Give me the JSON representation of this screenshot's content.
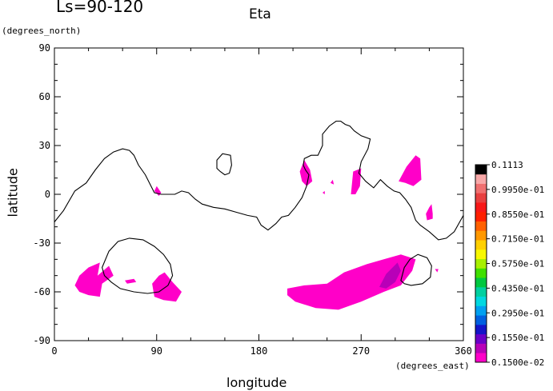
{
  "header": {
    "season": "Ls=90-120",
    "title": "Eta"
  },
  "chart_data": {
    "type": "heatmap",
    "title": "Eta",
    "subtitle": "Ls=90-120",
    "xlabel": "longitude",
    "ylabel": "latitude",
    "x_units": "(degrees_east)",
    "y_units": "(degrees_north)",
    "xlim": [
      0,
      360
    ],
    "ylim": [
      -90,
      90
    ],
    "xticks": [
      "0",
      "90",
      "180",
      "270",
      "360"
    ],
    "yticks": [
      "90",
      "60",
      "30",
      "0",
      "-30",
      "-60",
      "-90"
    ],
    "grid": false,
    "colorbar": {
      "levels": [
        "0.1113",
        "0.9950e-01",
        "0.8550e-01",
        "0.7150e-01",
        "0.5750e-01",
        "0.4350e-01",
        "0.2950e-01",
        "0.1550e-01",
        "0.1500e-02"
      ],
      "colors": [
        "#ff00c8",
        "#b800b8",
        "#6a00c8",
        "#1414c8",
        "#0060e0",
        "#00a0f0",
        "#00d8e0",
        "#00d0a0",
        "#00c840",
        "#40e000",
        "#a8f000",
        "#f8f800",
        "#ffd000",
        "#ff9800",
        "#ff6000",
        "#ff2000",
        "#f81818",
        "#e84040",
        "#f07070",
        "#f8a8a8",
        "#000000"
      ]
    },
    "filled_regions": [
      {
        "level": "0.1500e-02",
        "color": "#ff00c8",
        "points": [
          [
            18,
            -56
          ],
          [
            22,
            -50
          ],
          [
            30,
            -45
          ],
          [
            40,
            -42
          ],
          [
            38,
            -50
          ],
          [
            48,
            -44
          ],
          [
            52,
            -50
          ],
          [
            42,
            -55
          ],
          [
            40,
            -63
          ],
          [
            30,
            -62
          ],
          [
            22,
            -60
          ]
        ]
      },
      {
        "level": "0.1500e-02",
        "color": "#ff00c8",
        "points": [
          [
            86,
            -55
          ],
          [
            92,
            -50
          ],
          [
            97,
            -48
          ],
          [
            104,
            -54
          ],
          [
            112,
            -60
          ],
          [
            107,
            -66
          ],
          [
            96,
            -65
          ],
          [
            88,
            -63
          ]
        ]
      },
      {
        "level": "0.1500e-02",
        "color": "#ff00c8",
        "points": [
          [
            62,
            -53
          ],
          [
            70,
            -52
          ],
          [
            72,
            -54
          ],
          [
            64,
            -55
          ]
        ]
      },
      {
        "level": "0.1500e-02",
        "color": "#ff00c8",
        "points": [
          [
            88,
            2
          ],
          [
            90,
            5
          ],
          [
            94,
            1
          ],
          [
            92,
            -1
          ]
        ]
      },
      {
        "level": "0.1500e-02",
        "color": "#ff00c8",
        "points": [
          [
            216,
            14
          ],
          [
            220,
            21
          ],
          [
            225,
            15
          ],
          [
            227,
            8
          ],
          [
            222,
            5
          ],
          [
            218,
            8
          ]
        ]
      },
      {
        "level": "0.1500e-02",
        "color": "#ff00c8",
        "points": [
          [
            243,
            7
          ],
          [
            245,
            9
          ],
          [
            246,
            6
          ]
        ]
      },
      {
        "level": "0.1500e-02",
        "color": "#ff00c8",
        "points": [
          [
            236,
            1
          ],
          [
            238,
            2
          ],
          [
            238,
            0
          ]
        ]
      },
      {
        "level": "0.1500e-02",
        "color": "#ff00c8",
        "points": [
          [
            261,
            0
          ],
          [
            263,
            14
          ],
          [
            270,
            16
          ],
          [
            269,
            5
          ],
          [
            265,
            0
          ]
        ]
      },
      {
        "level": "0.1500e-02",
        "color": "#ff00c8",
        "points": [
          [
            303,
            8
          ],
          [
            310,
            17
          ],
          [
            318,
            24
          ],
          [
            322,
            22
          ],
          [
            323,
            9
          ],
          [
            316,
            5
          ],
          [
            309,
            7
          ]
        ]
      },
      {
        "level": "0.1500e-02",
        "color": "#ff00c8",
        "points": [
          [
            327,
            -12
          ],
          [
            330,
            -8
          ],
          [
            332,
            -6
          ],
          [
            333,
            -12
          ],
          [
            333,
            -15
          ],
          [
            328,
            -16
          ]
        ]
      },
      {
        "level": "0.1500e-02",
        "color": "#ff00c8",
        "points": [
          [
            335,
            -46
          ],
          [
            338,
            -46
          ],
          [
            337,
            -48
          ]
        ]
      },
      {
        "level": "0.1500e-02",
        "color": "#ff00c8",
        "points": [
          [
            205,
            -58
          ],
          [
            220,
            -56
          ],
          [
            240,
            -55
          ],
          [
            255,
            -48
          ],
          [
            275,
            -43
          ],
          [
            290,
            -40
          ],
          [
            305,
            -37
          ],
          [
            318,
            -40
          ],
          [
            315,
            -47
          ],
          [
            305,
            -56
          ],
          [
            290,
            -60
          ],
          [
            270,
            -66
          ],
          [
            250,
            -71
          ],
          [
            230,
            -70
          ],
          [
            212,
            -66
          ],
          [
            205,
            -62
          ]
        ]
      },
      {
        "level": "0.1550e-01",
        "color": "#b800b8",
        "points": [
          [
            286,
            -57
          ],
          [
            292,
            -49
          ],
          [
            302,
            -42
          ],
          [
            305,
            -47
          ],
          [
            300,
            -54
          ],
          [
            292,
            -58
          ]
        ]
      }
    ],
    "contours": [
      {
        "name": "coastline",
        "points": [
          [
            0,
            -17
          ],
          [
            8,
            -10
          ],
          [
            18,
            2
          ],
          [
            28,
            7
          ],
          [
            36,
            15
          ],
          [
            44,
            22
          ],
          [
            52,
            26
          ],
          [
            60,
            28
          ],
          [
            66,
            27
          ],
          [
            70,
            24
          ],
          [
            74,
            18
          ],
          [
            80,
            12
          ],
          [
            85,
            5
          ],
          [
            88,
            1
          ],
          [
            94,
            0
          ],
          [
            100,
            0
          ],
          [
            106,
            0
          ],
          [
            112,
            2
          ],
          [
            118,
            1
          ],
          [
            124,
            -3
          ],
          [
            130,
            -6
          ],
          [
            140,
            -8
          ],
          [
            150,
            -9
          ],
          [
            160,
            -11
          ],
          [
            170,
            -13
          ],
          [
            178,
            -14
          ],
          [
            182,
            -19
          ],
          [
            188,
            -22
          ],
          [
            195,
            -18
          ],
          [
            200,
            -14
          ],
          [
            206,
            -13
          ],
          [
            212,
            -8
          ],
          [
            218,
            -2
          ],
          [
            222,
            5
          ],
          [
            224,
            12
          ],
          [
            221,
            15
          ],
          [
            219,
            18
          ],
          [
            220,
            22
          ],
          [
            226,
            24
          ],
          [
            232,
            24
          ],
          [
            236,
            30
          ],
          [
            236,
            37
          ],
          [
            242,
            42
          ],
          [
            248,
            45
          ],
          [
            252,
            45
          ],
          [
            256,
            43
          ],
          [
            260,
            42
          ],
          [
            264,
            39
          ],
          [
            270,
            36
          ],
          [
            278,
            34
          ],
          [
            276,
            28
          ],
          [
            270,
            20
          ],
          [
            268,
            13
          ],
          [
            274,
            8
          ],
          [
            281,
            4
          ],
          [
            287,
            9
          ],
          [
            293,
            5
          ],
          [
            299,
            2
          ],
          [
            304,
            1
          ],
          [
            309,
            -3
          ],
          [
            314,
            -8
          ],
          [
            318,
            -16
          ],
          [
            322,
            -19
          ],
          [
            330,
            -23
          ],
          [
            338,
            -28
          ],
          [
            345,
            -27
          ],
          [
            352,
            -23
          ],
          [
            360,
            -13
          ]
        ]
      },
      {
        "name": "island-30n",
        "points": [
          [
            143,
            21
          ],
          [
            148,
            25
          ],
          [
            155,
            24
          ],
          [
            156,
            18
          ],
          [
            154,
            13
          ],
          [
            150,
            12
          ],
          [
            146,
            14
          ],
          [
            143,
            16
          ]
        ]
      },
      {
        "name": "basin-sw",
        "points": [
          [
            42,
            -45
          ],
          [
            48,
            -35
          ],
          [
            56,
            -29
          ],
          [
            66,
            -27
          ],
          [
            78,
            -28
          ],
          [
            88,
            -32
          ],
          [
            96,
            -37
          ],
          [
            102,
            -43
          ],
          [
            104,
            -50
          ],
          [
            100,
            -56
          ],
          [
            92,
            -60
          ],
          [
            82,
            -61
          ],
          [
            70,
            -60
          ],
          [
            58,
            -58
          ],
          [
            50,
            -54
          ],
          [
            44,
            -50
          ]
        ]
      },
      {
        "name": "basin-se",
        "points": [
          [
            305,
            -53
          ],
          [
            308,
            -45
          ],
          [
            313,
            -40
          ],
          [
            320,
            -37
          ],
          [
            328,
            -39
          ],
          [
            332,
            -44
          ],
          [
            331,
            -51
          ],
          [
            324,
            -55
          ],
          [
            314,
            -56
          ],
          [
            308,
            -55
          ]
        ]
      }
    ]
  }
}
